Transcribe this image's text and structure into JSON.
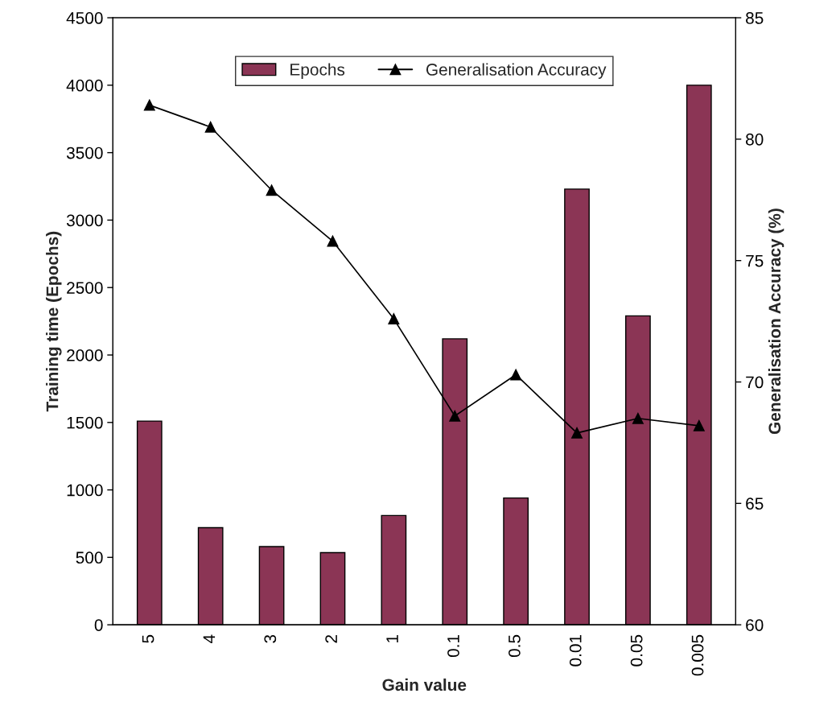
{
  "chart_data": {
    "type": "bar",
    "xlabel": "Gain value",
    "ylabel": "Training time (Epochs)",
    "y2label": "Generalisation Accuracy (%)",
    "categories": [
      "5",
      "4",
      "3",
      "2",
      "1",
      "0.1",
      "0.5",
      "0.01",
      "0.05",
      "0.005"
    ],
    "series": [
      {
        "name": "Epochs",
        "color": "#8b3555",
        "values": [
          1510,
          720,
          580,
          535,
          810,
          2120,
          940,
          3230,
          2290,
          4000
        ]
      },
      {
        "name": "Generalisation Accuracy",
        "type": "line",
        "axis": "y2",
        "color": "#000000",
        "marker": "triangle",
        "values": [
          81.4,
          80.5,
          77.9,
          75.8,
          72.6,
          68.6,
          70.3,
          67.9,
          68.5,
          68.2
        ]
      }
    ],
    "ylim": [
      0,
      4500
    ],
    "yticks": [
      0,
      500,
      1000,
      1500,
      2000,
      2500,
      3000,
      3500,
      4000,
      4500
    ],
    "y2lim": [
      60,
      85
    ],
    "y2ticks": [
      60,
      65,
      70,
      75,
      80,
      85
    ],
    "grid": false,
    "legend": "top"
  }
}
